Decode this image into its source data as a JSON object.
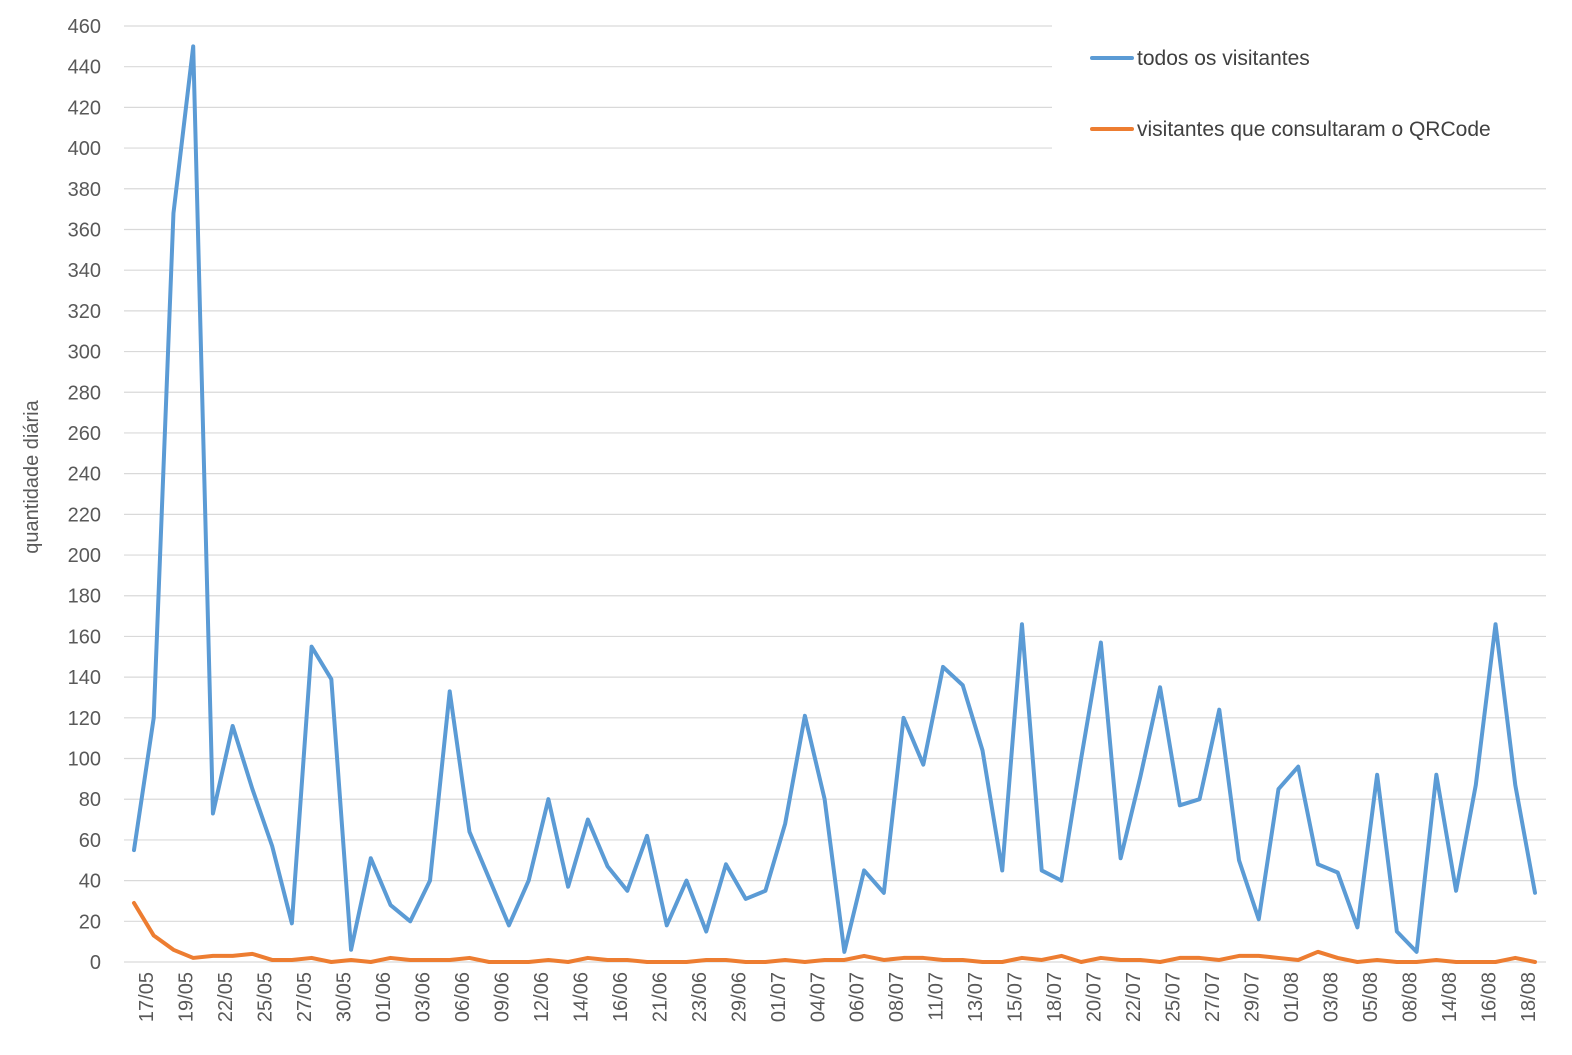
{
  "chart_data": {
    "type": "line",
    "title": "",
    "xlabel": "",
    "ylabel": "quantidade diária",
    "ylim": [
      0,
      460
    ],
    "ytick_step": 20,
    "grid": true,
    "legend_position": "top-right",
    "x_tick_labels": [
      "17/05",
      "19/05",
      "22/05",
      "25/05",
      "27/05",
      "30/05",
      "01/06",
      "03/06",
      "06/06",
      "09/06",
      "12/06",
      "14/06",
      "16/06",
      "21/06",
      "23/06",
      "29/06",
      "01/07",
      "04/07",
      "06/07",
      "08/07",
      "11/07",
      "13/07",
      "15/07",
      "18/07",
      "20/07",
      "22/07",
      "25/07",
      "27/07",
      "29/07",
      "01/08",
      "03/08",
      "05/08",
      "08/08",
      "14/08",
      "16/08",
      "18/08"
    ],
    "series": [
      {
        "name": "todos os visitantes",
        "color": "#5b9bd5",
        "values": [
          55,
          120,
          368,
          450,
          73,
          116,
          85,
          57,
          19,
          155,
          139,
          6,
          51,
          28,
          20,
          40,
          133,
          64,
          41,
          18,
          40,
          80,
          37,
          70,
          47,
          35,
          62,
          18,
          40,
          15,
          48,
          31,
          35,
          68,
          121,
          80,
          5,
          45,
          34,
          120,
          97,
          145,
          136,
          104,
          45,
          166,
          45,
          40,
          100,
          157,
          51,
          91,
          135,
          77,
          80,
          124,
          50,
          21,
          85,
          96,
          48,
          44,
          17,
          92,
          15,
          5,
          92,
          35,
          87,
          166,
          87,
          34
        ]
      },
      {
        "name": "visitantes que consultaram o QRCode",
        "color": "#ed7d31",
        "values": [
          29,
          13,
          6,
          2,
          3,
          3,
          4,
          1,
          1,
          2,
          0,
          1,
          0,
          2,
          1,
          1,
          1,
          2,
          0,
          0,
          0,
          1,
          0,
          2,
          1,
          1,
          0,
          0,
          0,
          1,
          1,
          0,
          0,
          1,
          0,
          1,
          1,
          3,
          1,
          2,
          2,
          1,
          1,
          0,
          0,
          2,
          1,
          3,
          0,
          2,
          1,
          1,
          0,
          2,
          2,
          1,
          3,
          3,
          2,
          1,
          5,
          2,
          0,
          1,
          0,
          0,
          1,
          0,
          0,
          0,
          2,
          0
        ]
      }
    ]
  }
}
